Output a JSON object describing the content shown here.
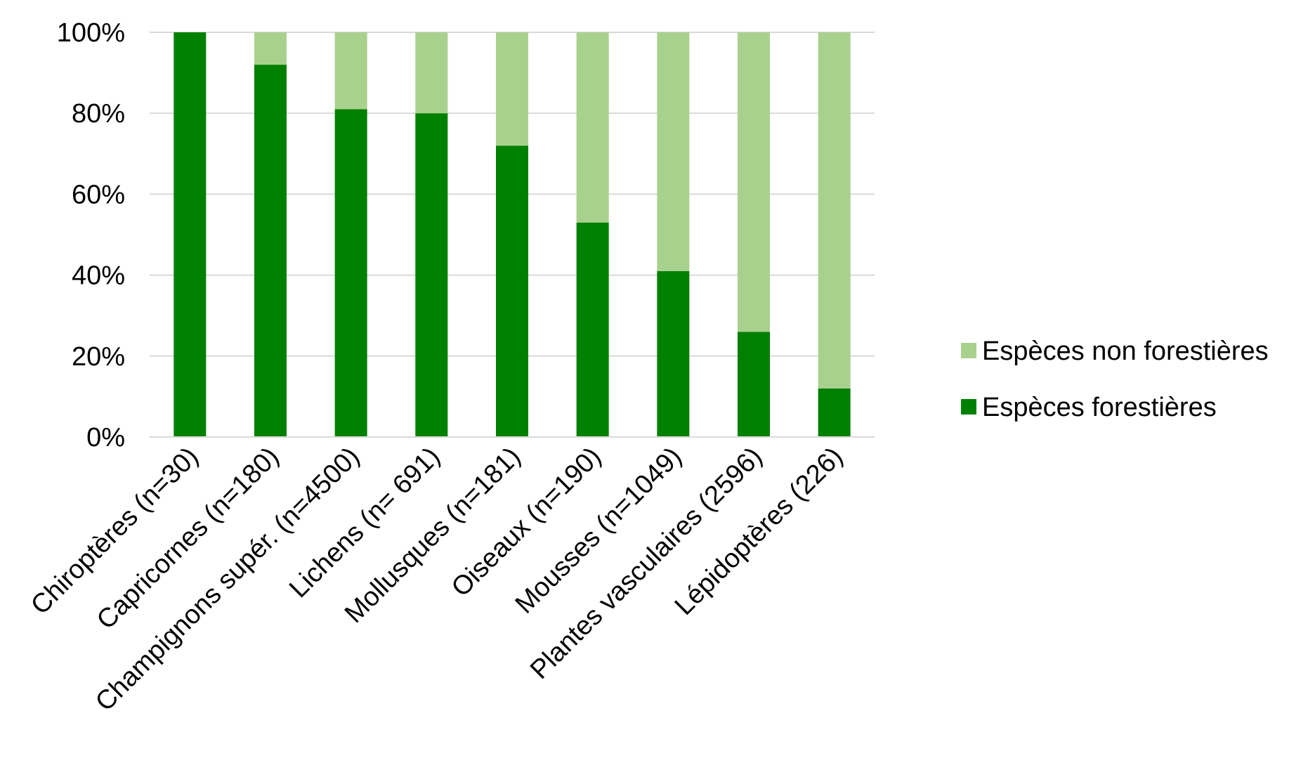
{
  "chart_data": {
    "type": "bar",
    "stacked": true,
    "percent": true,
    "categories": [
      "Chiroptères (n=30)",
      "Capricornes (n=180)",
      "Champignons supér. (n=4500)",
      "Lichens (n= 691)",
      "Mollusques (n=181)",
      "Oiseaux (n=190)",
      "Mousses (n=1049)",
      "Plantes vasculaires (2596)",
      "Lépidoptères (226)"
    ],
    "series": [
      {
        "name": "Espèces forestières",
        "color": "#008000",
        "values": [
          100,
          92,
          81,
          80,
          72,
          53,
          41,
          26,
          12
        ]
      },
      {
        "name": "Espèces non forestières",
        "color": "#a9d18e",
        "values": [
          0,
          8,
          19,
          20,
          28,
          47,
          59,
          74,
          88
        ]
      }
    ],
    "y_ticks": [
      "0%",
      "20%",
      "40%",
      "60%",
      "80%",
      "100%"
    ],
    "ylim": [
      0,
      100
    ],
    "grid": true,
    "legend_position": "right"
  }
}
